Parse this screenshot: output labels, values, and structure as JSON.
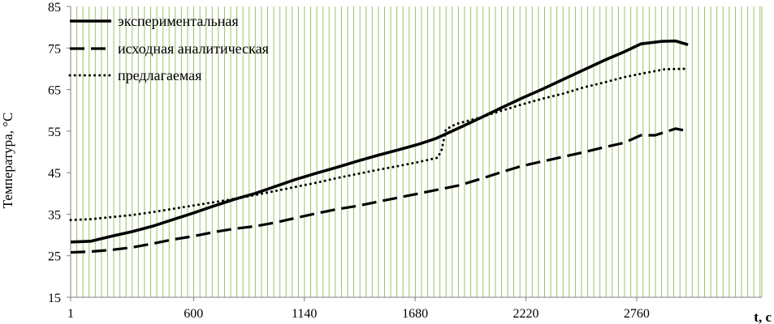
{
  "chart_data": {
    "type": "line",
    "title": "",
    "ylabel": "Температура, °С",
    "xlabel": "t, c",
    "ylim": [
      15,
      85
    ],
    "xlim": [
      1,
      3370
    ],
    "y_ticks": [
      15,
      25,
      35,
      45,
      55,
      65,
      75,
      85
    ],
    "x_ticks": [
      1,
      600,
      1140,
      1680,
      2220,
      2760
    ],
    "grid": "vertical, green",
    "legend_position": "top-left",
    "colors": {
      "grid": "#9bc268",
      "axis": "#808080",
      "series": "#000000"
    },
    "series": [
      {
        "name": "экспериментальная",
        "style": "solid",
        "points": [
          [
            1,
            28.3
          ],
          [
            100,
            28.5
          ],
          [
            200,
            29.7
          ],
          [
            300,
            30.8
          ],
          [
            400,
            32.1
          ],
          [
            500,
            33.7
          ],
          [
            600,
            35.3
          ],
          [
            700,
            37.0
          ],
          [
            800,
            38.6
          ],
          [
            900,
            40.0
          ],
          [
            1000,
            41.7
          ],
          [
            1100,
            43.4
          ],
          [
            1200,
            44.9
          ],
          [
            1300,
            46.3
          ],
          [
            1400,
            47.8
          ],
          [
            1500,
            49.2
          ],
          [
            1600,
            50.5
          ],
          [
            1700,
            51.9
          ],
          [
            1780,
            53.2
          ],
          [
            1900,
            55.9
          ],
          [
            2000,
            58.2
          ],
          [
            2100,
            60.6
          ],
          [
            2200,
            62.9
          ],
          [
            2300,
            65.1
          ],
          [
            2400,
            67.4
          ],
          [
            2500,
            69.7
          ],
          [
            2600,
            72.0
          ],
          [
            2700,
            74.1
          ],
          [
            2780,
            76.0
          ],
          [
            2880,
            76.6
          ],
          [
            2950,
            76.7
          ],
          [
            3010,
            75.8
          ]
        ]
      },
      {
        "name": "исходная аналитическая",
        "style": "dashed",
        "points": [
          [
            1,
            25.8
          ],
          [
            100,
            26.0
          ],
          [
            200,
            26.4
          ],
          [
            300,
            27.0
          ],
          [
            400,
            27.9
          ],
          [
            500,
            28.9
          ],
          [
            600,
            29.7
          ],
          [
            700,
            30.7
          ],
          [
            800,
            31.5
          ],
          [
            900,
            32.1
          ],
          [
            1000,
            33.0
          ],
          [
            1100,
            34.1
          ],
          [
            1200,
            35.2
          ],
          [
            1300,
            36.2
          ],
          [
            1400,
            37.0
          ],
          [
            1500,
            38.0
          ],
          [
            1600,
            39.0
          ],
          [
            1700,
            40.0
          ],
          [
            1780,
            40.8
          ],
          [
            1900,
            42.0
          ],
          [
            2000,
            43.5
          ],
          [
            2100,
            45.1
          ],
          [
            2200,
            46.6
          ],
          [
            2300,
            47.7
          ],
          [
            2400,
            48.8
          ],
          [
            2500,
            49.9
          ],
          [
            2600,
            51.1
          ],
          [
            2700,
            52.2
          ],
          [
            2780,
            54.0
          ],
          [
            2850,
            54.0
          ],
          [
            2950,
            55.6
          ],
          [
            3010,
            55.0
          ]
        ]
      },
      {
        "name": "предлагаемая",
        "style": "dotted",
        "points": [
          [
            1,
            33.6
          ],
          [
            100,
            33.8
          ],
          [
            200,
            34.3
          ],
          [
            300,
            34.8
          ],
          [
            400,
            35.5
          ],
          [
            500,
            36.3
          ],
          [
            600,
            37.1
          ],
          [
            700,
            37.9
          ],
          [
            800,
            38.7
          ],
          [
            900,
            39.6
          ],
          [
            1000,
            40.6
          ],
          [
            1100,
            41.6
          ],
          [
            1200,
            42.6
          ],
          [
            1300,
            43.7
          ],
          [
            1400,
            44.7
          ],
          [
            1500,
            45.7
          ],
          [
            1600,
            46.6
          ],
          [
            1700,
            47.6
          ],
          [
            1790,
            48.6
          ],
          [
            1810,
            50.5
          ],
          [
            1830,
            55.4
          ],
          [
            1880,
            56.7
          ],
          [
            2000,
            58.3
          ],
          [
            2100,
            59.9
          ],
          [
            2200,
            61.4
          ],
          [
            2300,
            62.8
          ],
          [
            2400,
            64.0
          ],
          [
            2500,
            65.5
          ],
          [
            2600,
            66.7
          ],
          [
            2700,
            68.0
          ],
          [
            2800,
            69.0
          ],
          [
            2900,
            69.9
          ],
          [
            3010,
            70.0
          ]
        ]
      }
    ]
  }
}
